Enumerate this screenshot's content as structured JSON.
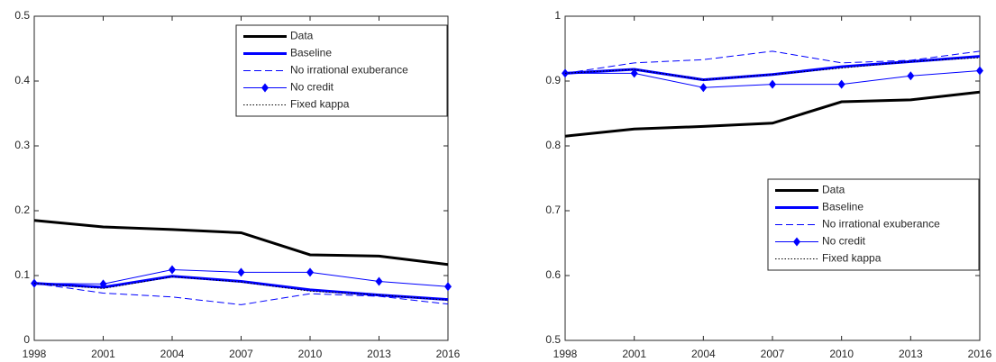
{
  "chart_data": [
    {
      "type": "line",
      "x": [
        1998,
        2001,
        2004,
        2007,
        2010,
        2013,
        2016
      ],
      "xlim": [
        1998,
        2016
      ],
      "xticks": [
        1998,
        2001,
        2004,
        2007,
        2010,
        2013,
        2016
      ],
      "ylim": [
        0,
        0.5
      ],
      "yticks": [
        0,
        0.1,
        0.2,
        0.3,
        0.4,
        0.5
      ],
      "legend": "upper right",
      "series": [
        {
          "name": "Data",
          "color": "#000000",
          "style": "solid",
          "width": 3,
          "values": [
            0.185,
            0.175,
            0.171,
            0.166,
            0.132,
            0.13,
            0.117
          ]
        },
        {
          "name": "Baseline",
          "color": "#0000ff",
          "style": "solid",
          "width": 3,
          "values": [
            0.088,
            0.082,
            0.099,
            0.091,
            0.078,
            0.07,
            0.063
          ]
        },
        {
          "name": "No irrational exuberance",
          "color": "#0000ff",
          "style": "dashed",
          "width": 1,
          "values": [
            0.088,
            0.073,
            0.067,
            0.055,
            0.072,
            0.068,
            0.056
          ]
        },
        {
          "name": "No credit",
          "color": "#0000ff",
          "style": "solid",
          "width": 1,
          "marker": "diamond",
          "values": [
            0.088,
            0.087,
            0.109,
            0.105,
            0.105,
            0.091,
            0.083
          ]
        },
        {
          "name": "Fixed kappa",
          "color": "#000000",
          "style": "dotted",
          "width": 1,
          "values": [
            0.088,
            0.08,
            0.098,
            0.09,
            0.076,
            0.07,
            0.062
          ]
        }
      ]
    },
    {
      "type": "line",
      "x": [
        1998,
        2001,
        2004,
        2007,
        2010,
        2013,
        2016
      ],
      "xlim": [
        1998,
        2016
      ],
      "xticks": [
        1998,
        2001,
        2004,
        2007,
        2010,
        2013,
        2016
      ],
      "ylim": [
        0.5,
        1
      ],
      "yticks": [
        0.5,
        0.6,
        0.7,
        0.8,
        0.9,
        1
      ],
      "legend": "lower right",
      "series": [
        {
          "name": "Data",
          "color": "#000000",
          "style": "solid",
          "width": 3,
          "values": [
            0.815,
            0.826,
            0.83,
            0.835,
            0.868,
            0.871,
            0.883
          ]
        },
        {
          "name": "Baseline",
          "color": "#0000ff",
          "style": "solid",
          "width": 3,
          "values": [
            0.912,
            0.918,
            0.902,
            0.91,
            0.922,
            0.93,
            0.938
          ]
        },
        {
          "name": "No irrational exuberance",
          "color": "#0000ff",
          "style": "dashed",
          "width": 1,
          "values": [
            0.912,
            0.928,
            0.933,
            0.946,
            0.928,
            0.932,
            0.946
          ]
        },
        {
          "name": "No credit",
          "color": "#0000ff",
          "style": "solid",
          "width": 1,
          "marker": "diamond",
          "values": [
            0.912,
            0.912,
            0.89,
            0.895,
            0.895,
            0.908,
            0.916
          ]
        },
        {
          "name": "Fixed kappa",
          "color": "#000000",
          "style": "dotted",
          "width": 1,
          "values": [
            0.912,
            0.918,
            0.902,
            0.91,
            0.92,
            0.93,
            0.936
          ]
        }
      ]
    }
  ]
}
